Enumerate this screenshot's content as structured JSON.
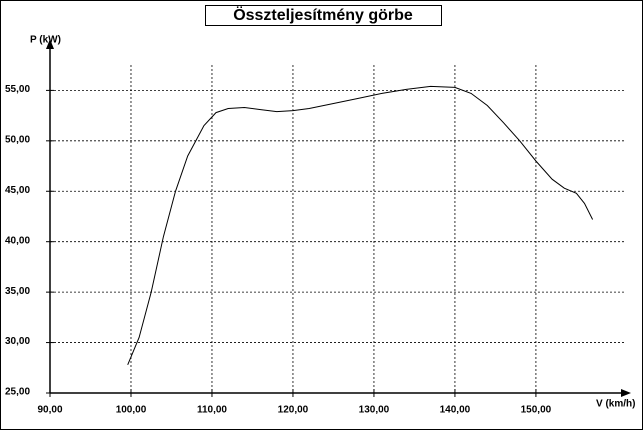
{
  "chart_data": {
    "type": "line",
    "title": "Összteljesítmény görbe",
    "y_label": "P (kW)",
    "x_label": "V (km/h)",
    "x": [
      99.6,
      101,
      102.5,
      104,
      105.5,
      107,
      109,
      110.5,
      112,
      114,
      116,
      118,
      120,
      122,
      125,
      128,
      131,
      134,
      137,
      140,
      142,
      144,
      146,
      148,
      150,
      152,
      153.5,
      155,
      156,
      157
    ],
    "values": [
      27.8,
      30.5,
      35,
      40.5,
      45,
      48.5,
      51.5,
      52.8,
      53.2,
      53.3,
      53.1,
      52.9,
      53.0,
      53.2,
      53.7,
      54.2,
      54.7,
      55.1,
      55.4,
      55.3,
      54.7,
      53.5,
      51.8,
      50.0,
      48.0,
      46.2,
      45.3,
      44.8,
      43.8,
      42.2
    ],
    "color": "#000000",
    "xlim": [
      90,
      161
    ],
    "ylim": [
      25,
      59.5
    ],
    "xticks": [
      {
        "value": 90,
        "label": "90,00"
      },
      {
        "value": 100,
        "label": "100,00"
      },
      {
        "value": 110,
        "label": "110,00"
      },
      {
        "value": 120,
        "label": "120,00"
      },
      {
        "value": 130,
        "label": "130,00"
      },
      {
        "value": 140,
        "label": "140,00"
      },
      {
        "value": 150,
        "label": "150,00"
      }
    ],
    "yticks": [
      {
        "value": 25,
        "label": "25,00"
      },
      {
        "value": 30,
        "label": "30,00"
      },
      {
        "value": 35,
        "label": "35,00"
      },
      {
        "value": 40,
        "label": "40,00"
      },
      {
        "value": 45,
        "label": "45,00"
      },
      {
        "value": 50,
        "label": "50,00"
      },
      {
        "value": 55,
        "label": "55,00"
      }
    ],
    "grid": true
  }
}
